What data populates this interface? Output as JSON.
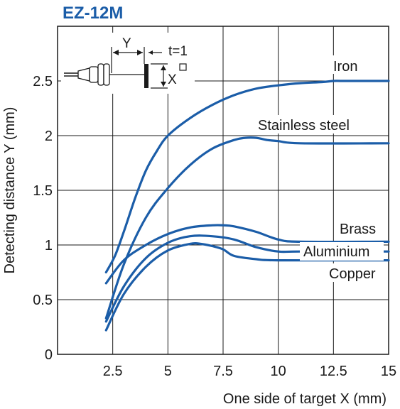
{
  "chart_data": {
    "type": "line",
    "title": "EZ-12M",
    "xlabel": "One side of target X (mm)",
    "ylabel": "Detecting distance Y (mm)",
    "xlim": [
      0,
      15
    ],
    "ylim": [
      0,
      3
    ],
    "x_ticks": [
      "2.5",
      "5",
      "7.5",
      "10",
      "12.5",
      "15"
    ],
    "y_ticks": [
      "0",
      "0.5",
      "1",
      "1.5",
      "2",
      "2.5"
    ],
    "grid": true,
    "series": [
      {
        "name": "Iron",
        "x": [
          2.2,
          2.6,
          3,
          3.5,
          4,
          4.5,
          5,
          6,
          7,
          8,
          9,
          10,
          11,
          12,
          12.5,
          13,
          15
        ],
        "y": [
          0.75,
          0.9,
          1.12,
          1.42,
          1.68,
          1.86,
          2.0,
          2.16,
          2.28,
          2.37,
          2.43,
          2.46,
          2.48,
          2.49,
          2.5,
          2.5,
          2.5
        ]
      },
      {
        "name": "Stainless steel",
        "x": [
          2.2,
          3,
          4,
          5,
          6,
          7,
          8,
          8.5,
          9,
          9.5,
          10,
          11,
          15
        ],
        "y": [
          0.33,
          0.82,
          1.25,
          1.52,
          1.73,
          1.88,
          1.96,
          1.98,
          1.98,
          1.96,
          1.95,
          1.93,
          1.93
        ]
      },
      {
        "name": "Brass",
        "x": [
          2.2,
          3,
          4,
          5,
          6,
          7,
          7.5,
          8,
          9,
          10,
          11,
          15
        ],
        "y": [
          0.65,
          0.86,
          1.0,
          1.1,
          1.16,
          1.18,
          1.18,
          1.17,
          1.12,
          1.05,
          1.03,
          1.03
        ]
      },
      {
        "name": "Aluminium",
        "x": [
          2.2,
          3,
          4,
          5,
          6,
          7,
          8,
          9,
          10,
          11,
          15
        ],
        "y": [
          0.3,
          0.62,
          0.88,
          1.02,
          1.08,
          1.08,
          1.05,
          0.98,
          0.94,
          0.94,
          0.94
        ]
      },
      {
        "name": "Copper",
        "x": [
          2.2,
          3,
          4,
          5,
          6,
          6.5,
          7,
          7.5,
          8,
          9,
          10,
          15
        ],
        "y": [
          0.22,
          0.55,
          0.8,
          0.95,
          1.01,
          1.01,
          0.99,
          0.96,
          0.9,
          0.87,
          0.86,
          0.86
        ]
      }
    ],
    "diagram": {
      "y_label": "Y",
      "t_label": "t=1",
      "x_label": "X"
    },
    "colors": {
      "line": "#1b5da8",
      "title": "#1b5da8",
      "grid": "#1a1a1a",
      "frame": "#1a1a1a"
    }
  }
}
